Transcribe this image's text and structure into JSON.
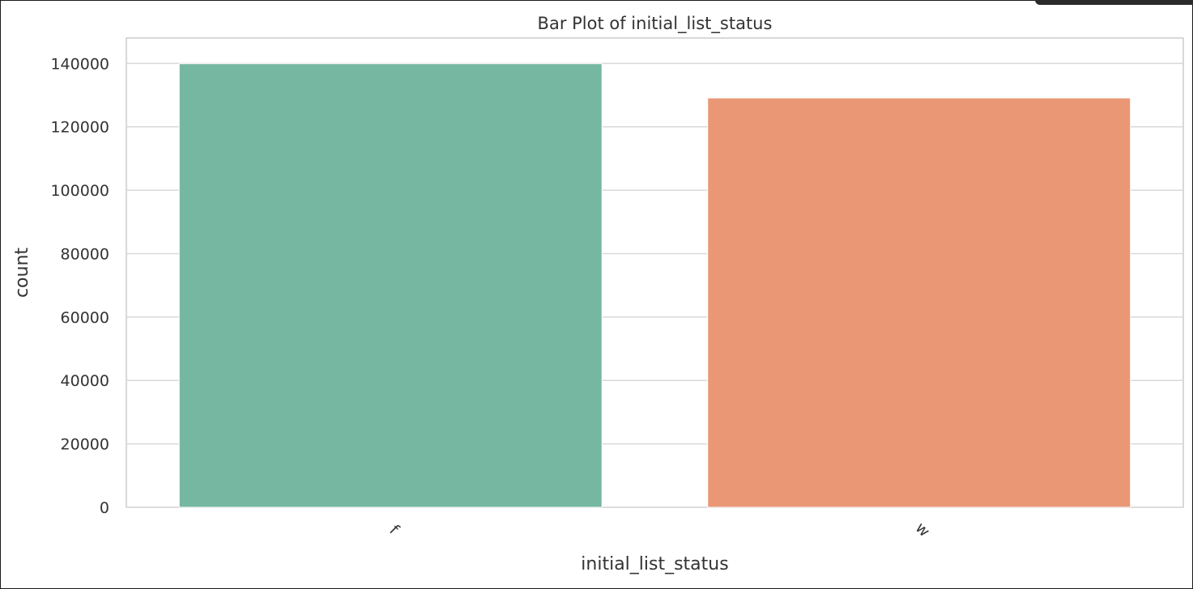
{
  "chart_data": {
    "type": "bar",
    "title": "Bar Plot of initial_list_status",
    "xlabel": "initial_list_status",
    "ylabel": "count",
    "categories": [
      "f",
      "w"
    ],
    "values": [
      139900,
      129100
    ],
    "colors": [
      "#76b7a1",
      "#e99775"
    ],
    "ylim": [
      0,
      148000
    ],
    "yticks": [
      0,
      20000,
      40000,
      60000,
      80000,
      100000,
      120000,
      140000
    ],
    "ytick_labels": [
      "0",
      "20000",
      "40000",
      "60000",
      "80000",
      "100000",
      "120000",
      "140000"
    ],
    "xtick_rotation_deg": 45,
    "grid": true,
    "grid_axis": "y",
    "legend": false
  }
}
